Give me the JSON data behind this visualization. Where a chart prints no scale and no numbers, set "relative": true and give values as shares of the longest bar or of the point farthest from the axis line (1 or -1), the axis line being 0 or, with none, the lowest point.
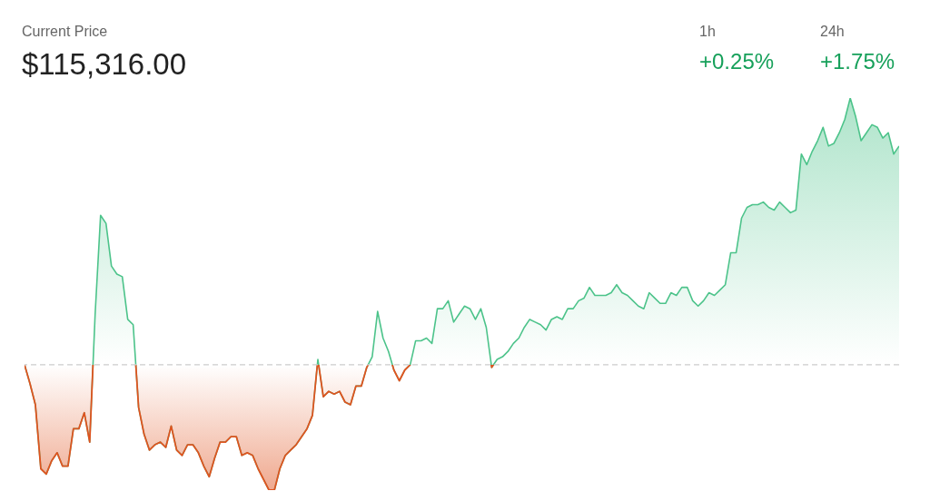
{
  "chart_data": {
    "type": "area",
    "title": "Current Price",
    "subtitle": "$115,316.00",
    "relative": true,
    "annotations": [
      "1h",
      "+0.25%",
      "24h",
      "+1.75%"
    ],
    "ref_lines": [
      {
        "axis": "y",
        "value": 0,
        "color": "#cccccc",
        "line_style": "dashed"
      }
    ],
    "categories": [
      null,
      null,
      null,
      null,
      null,
      null,
      null,
      null,
      null,
      null,
      null,
      null,
      null,
      null,
      null,
      null,
      null,
      null,
      null,
      null,
      null,
      null,
      null,
      null,
      null,
      null,
      null,
      null,
      null,
      null,
      null,
      null,
      null,
      null,
      null,
      null,
      null,
      null,
      null,
      null,
      null,
      null,
      null,
      null,
      null,
      null,
      null,
      null,
      null,
      null,
      null,
      null,
      null,
      null,
      null,
      null,
      null,
      null,
      null,
      null,
      null,
      null,
      null,
      null,
      null,
      null,
      null,
      null,
      null,
      null,
      null,
      null,
      null,
      null,
      null,
      null,
      null,
      null,
      null,
      null,
      null,
      null,
      null,
      null,
      null,
      null,
      null,
      null,
      null,
      null,
      null,
      null,
      null,
      null,
      null,
      null,
      null,
      null,
      null,
      null,
      null,
      null,
      null,
      null,
      null,
      null,
      null,
      null,
      null,
      null,
      null,
      null,
      null,
      null,
      null,
      null,
      null,
      null,
      null,
      null,
      null,
      null,
      null,
      null,
      null,
      null,
      null,
      null,
      null,
      null,
      null,
      null,
      null,
      null,
      null,
      null,
      null,
      null,
      null,
      null,
      null,
      null,
      null,
      null,
      null,
      null,
      null,
      null,
      null,
      null,
      null,
      null,
      null,
      null,
      null,
      null,
      null,
      null,
      null,
      null,
      null,
      null
    ],
    "series": [
      {
        "color": "#4cc38a",
        "colors": [
          "#4cc38a",
          "#e0531f",
          "#e0531f",
          "#e0531f",
          "#e0531f",
          "#e0531f",
          "#e0531f",
          "#e0531f",
          "#e0531f",
          "#e0531f",
          "#e0531f",
          "#e0531f",
          "#e0531f",
          "#4cc38a",
          "#4cc38a",
          "#4cc38a",
          "#4cc38a",
          "#4cc38a",
          "#4cc38a",
          "#4cc38a",
          "#4cc38a",
          "#e0531f",
          "#e0531f",
          "#e0531f",
          "#e0531f",
          "#e0531f",
          "#e0531f",
          "#e0531f",
          "#e0531f",
          "#e0531f",
          "#e0531f",
          "#e0531f",
          "#e0531f",
          "#e0531f",
          "#e0531f",
          "#e0531f",
          "#e0531f",
          "#e0531f",
          "#e0531f",
          "#e0531f",
          "#e0531f",
          "#e0531f",
          "#e0531f",
          "#e0531f",
          "#e0531f",
          "#e0531f",
          "#e0531f",
          "#e0531f",
          "#e0531f",
          "#e0531f",
          "#e0531f",
          "#e0531f",
          "#e0531f",
          "#e0531f",
          "#4cc38a",
          "#e0531f",
          "#e0531f",
          "#e0531f",
          "#e0531f",
          "#e0531f",
          "#e0531f",
          "#e0531f",
          "#e0531f",
          "#e0531f",
          "#4cc38a",
          "#4cc38a",
          "#4cc38a",
          "#4cc38a",
          "#e0531f",
          "#e0531f",
          "#e0531f",
          "#4cc38a",
          "#4cc38a",
          "#4cc38a",
          "#4cc38a",
          "#4cc38a",
          "#4cc38a",
          "#4cc38a",
          "#4cc38a",
          "#4cc38a",
          "#4cc38a",
          "#4cc38a",
          "#4cc38a",
          "#4cc38a",
          "#4cc38a",
          "#4cc38a",
          "#e0531f",
          "#4cc38a",
          "#4cc38a",
          "#4cc38a",
          "#4cc38a",
          "#4cc38a",
          "#4cc38a",
          "#4cc38a",
          "#4cc38a",
          "#4cc38a",
          "#4cc38a",
          "#4cc38a",
          "#4cc38a",
          "#4cc38a",
          "#4cc38a",
          "#4cc38a",
          "#4cc38a",
          "#4cc38a",
          "#4cc38a",
          "#4cc38a",
          "#4cc38a",
          "#4cc38a",
          "#4cc38a",
          "#4cc38a",
          "#4cc38a",
          "#4cc38a",
          "#4cc38a",
          "#4cc38a",
          "#4cc38a",
          "#4cc38a",
          "#4cc38a",
          "#4cc38a",
          "#4cc38a",
          "#4cc38a",
          "#4cc38a",
          "#4cc38a",
          "#4cc38a",
          "#4cc38a",
          "#4cc38a",
          "#4cc38a",
          "#4cc38a",
          "#4cc38a",
          "#4cc38a",
          "#4cc38a",
          "#4cc38a",
          "#4cc38a",
          "#4cc38a",
          "#4cc38a",
          "#4cc38a",
          "#4cc38a",
          "#4cc38a",
          "#4cc38a",
          "#4cc38a",
          "#4cc38a",
          "#4cc38a",
          "#4cc38a",
          "#4cc38a",
          "#4cc38a",
          "#4cc38a",
          "#4cc38a",
          "#4cc38a",
          "#4cc38a",
          "#4cc38a",
          "#4cc38a",
          "#4cc38a",
          "#4cc38a",
          "#4cc38a",
          "#4cc38a",
          "#4cc38a",
          "#4cc38a",
          "#4cc38a",
          "#4cc38a",
          "#4cc38a",
          "#4cc38a",
          "#4cc38a",
          "#4cc38a"
        ],
        "values": [
          0,
          -0.07,
          -0.15,
          -0.39,
          -0.41,
          -0.36,
          -0.33,
          -0.38,
          -0.38,
          -0.24,
          -0.24,
          -0.18,
          -0.29,
          0.19,
          0.56,
          0.53,
          0.37,
          0.34,
          0.33,
          0.17,
          0.15,
          -0.16,
          -0.26,
          -0.32,
          -0.3,
          -0.29,
          -0.31,
          -0.23,
          -0.32,
          -0.34,
          -0.3,
          -0.3,
          -0.33,
          -0.38,
          -0.42,
          -0.35,
          -0.29,
          -0.29,
          -0.27,
          -0.27,
          -0.34,
          -0.33,
          -0.34,
          -0.39,
          -0.43,
          -0.47,
          -0.47,
          -0.39,
          -0.34,
          -0.32,
          -0.3,
          -0.27,
          -0.24,
          -0.19,
          0.02,
          -0.12,
          -0.1,
          -0.11,
          -0.1,
          -0.14,
          -0.15,
          -0.08,
          -0.08,
          -0.01,
          0.03,
          0.2,
          0.1,
          0.05,
          -0.02,
          -0.06,
          -0.02,
          0,
          0.09,
          0.09,
          0.1,
          0.08,
          0.21,
          0.21,
          0.24,
          0.16,
          0.19,
          0.22,
          0.21,
          0.17,
          0.21,
          0.14,
          -0.01,
          0.02,
          0.03,
          0.05,
          0.08,
          0.1,
          0.14,
          0.17,
          0.16,
          0.15,
          0.13,
          0.17,
          0.18,
          0.17,
          0.21,
          0.21,
          0.24,
          0.25,
          0.29,
          0.26,
          0.26,
          0.26,
          0.27,
          0.3,
          0.27,
          0.26,
          0.24,
          0.22,
          0.21,
          0.27,
          0.25,
          0.23,
          0.23,
          0.27,
          0.26,
          0.29,
          0.29,
          0.24,
          0.22,
          0.24,
          0.27,
          0.26,
          0.28,
          0.3,
          0.42,
          0.42,
          0.55,
          0.59,
          0.6,
          0.6,
          0.61,
          0.59,
          0.58,
          0.61,
          0.59,
          0.57,
          0.58,
          0.79,
          0.75,
          0.8,
          0.84,
          0.89,
          0.82,
          0.83,
          0.87,
          0.92,
          1,
          0.93,
          0.84,
          0.87,
          0.9,
          0.89,
          0.85,
          0.87,
          0.79,
          0.82
        ]
      }
    ]
  }
}
